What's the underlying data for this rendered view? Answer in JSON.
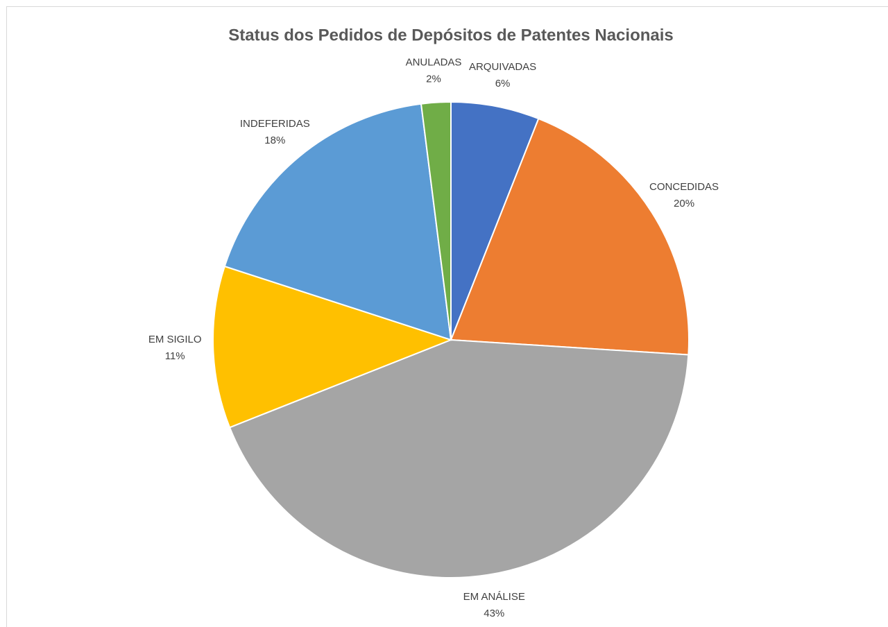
{
  "chart_data": {
    "type": "pie",
    "title": "Status dos Pedidos de Depósitos de Patentes Nacionais",
    "categories": [
      "ARQUIVADAS",
      "CONCEDIDAS",
      "EM ANÁLISE",
      "EM SIGILO",
      "INDEFERIDAS",
      "ANULADAS"
    ],
    "values": [
      6,
      20,
      43,
      11,
      18,
      2
    ],
    "value_labels": [
      "6%",
      "20%",
      "43%",
      "11%",
      "18%",
      "2%"
    ],
    "colors": [
      "#4472c4",
      "#ed7d31",
      "#a5a5a5",
      "#ffc000",
      "#5b9bd5",
      "#70ad47"
    ]
  }
}
